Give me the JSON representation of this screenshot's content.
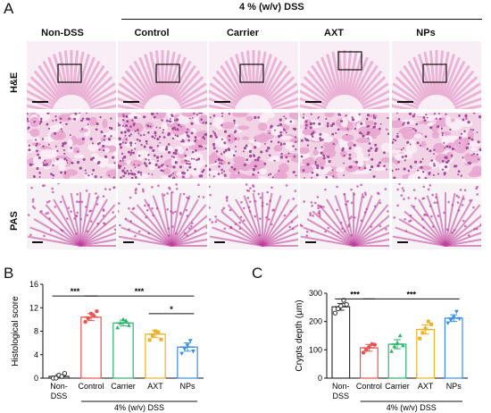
{
  "figure": {
    "panel_letters": [
      "A",
      "B",
      "C"
    ],
    "dss_header": "4 % (w/v) DSS",
    "columns": [
      "Non-DSS",
      "Control",
      "Carrier",
      "AXT",
      "NPs"
    ],
    "row_labels": [
      "H&E",
      "PAS"
    ],
    "colors": {
      "he_pink": "#e8a6cf",
      "he_purple": "#a34c9b",
      "pas_magenta": "#c03c9a",
      "control": "#e8534f",
      "carrier": "#2db56c",
      "axt": "#e8b22a",
      "nps": "#3a8ee6",
      "nondss": "#333333"
    }
  },
  "chart_data": [
    {
      "type": "bar",
      "panel": "B",
      "ylabel": "Histological score",
      "ylim": [
        0,
        16
      ],
      "yticks": [
        0,
        4,
        8,
        12,
        16
      ],
      "yticklabels": [
        "0",
        "4",
        "8",
        "12",
        "16"
      ],
      "categories": [
        "Non-DSS",
        "Control",
        "Carrier",
        "AXT",
        "NPs"
      ],
      "category_labels": [
        [
          "Non-",
          "DSS"
        ],
        [
          "Control"
        ],
        [
          "Carrier"
        ],
        [
          "AXT"
        ],
        [
          "NPs"
        ]
      ],
      "group_label": "4% (w/v) DSS",
      "values": [
        0.3,
        10.4,
        9.4,
        7.5,
        5.3
      ],
      "errors": [
        0.3,
        0.6,
        0.5,
        0.6,
        0.7
      ],
      "points": [
        [
          0,
          0,
          0.5,
          0.3,
          0.8
        ],
        [
          9.6,
          10.2,
          11.0,
          10.6,
          11.4
        ],
        [
          8.6,
          9.4,
          10.0,
          9.8,
          9.0
        ],
        [
          6.5,
          7.2,
          8.0,
          7.8,
          6.6
        ],
        [
          4.2,
          5.0,
          5.6,
          6.4,
          4.6
        ]
      ],
      "significance": [
        {
          "from": 0,
          "to": 1,
          "label": "***",
          "y": 14.0
        },
        {
          "from": 1,
          "to": 4,
          "label": "***",
          "y": 14.0
        },
        {
          "from": 3,
          "to": 4,
          "label": "*",
          "y": 11.0
        }
      ],
      "grid": false
    },
    {
      "type": "bar",
      "panel": "C",
      "ylabel": "Crypts depth (μm)",
      "ylim": [
        0,
        300
      ],
      "yticks": [
        0,
        100,
        200,
        300
      ],
      "yticklabels": [
        "0",
        "100",
        "200",
        "300"
      ],
      "categories": [
        "Non-DSS",
        "Control",
        "Carrier",
        "AXT",
        "NPs"
      ],
      "category_labels": [
        [
          "Non-",
          "DSS"
        ],
        [
          "Control"
        ],
        [
          "Carrier"
        ],
        [
          "AXT"
        ],
        [
          "NPs"
        ]
      ],
      "group_label": "4% (w/v) DSS",
      "values": [
        252,
        107,
        120,
        172,
        212
      ],
      "errors": [
        12,
        12,
        16,
        16,
        12
      ],
      "points": [
        [
          230,
          245,
          255,
          275,
          260
        ],
        [
          90,
          100,
          110,
          120,
          118
        ],
        [
          95,
          112,
          125,
          150,
          115
        ],
        [
          140,
          160,
          175,
          200,
          190
        ],
        [
          195,
          205,
          215,
          235,
          210
        ]
      ],
      "significance": [
        {
          "from": 0,
          "to": 1,
          "label": "***",
          "y": 280
        },
        {
          "from": 1,
          "to": 4,
          "label": "***",
          "y": 280
        }
      ],
      "grid": false
    }
  ]
}
